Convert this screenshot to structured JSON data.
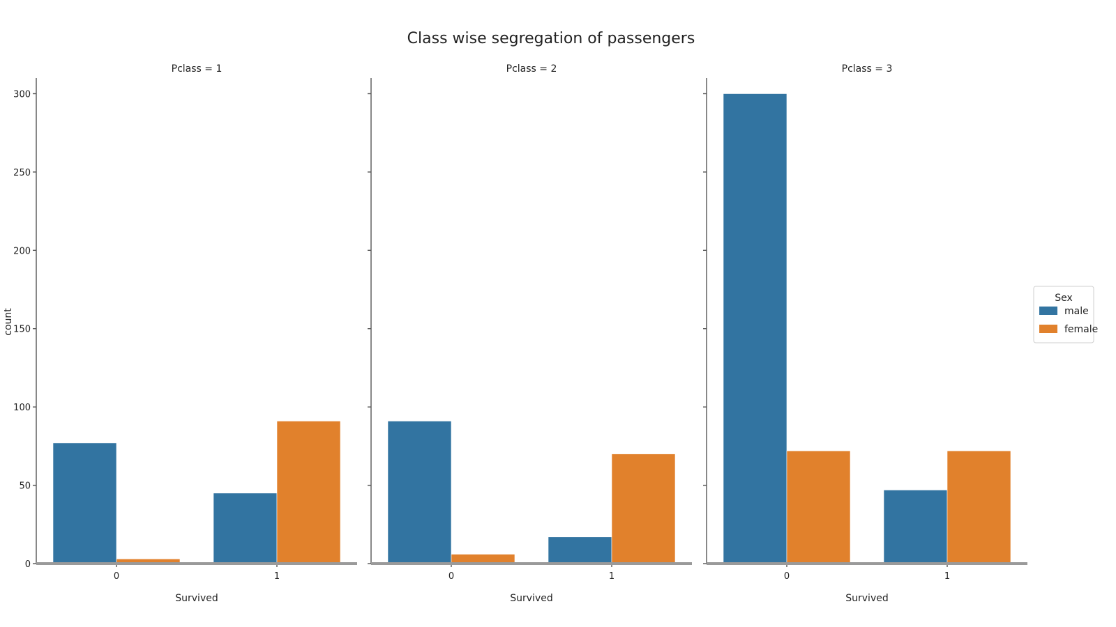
{
  "chart_data": {
    "type": "bar",
    "title": "Class wise segregation of passengers",
    "ylabel": "count",
    "xlabel": "Survived",
    "ylim": [
      0,
      310
    ],
    "yticks": [
      0,
      50,
      100,
      150,
      200,
      250,
      300
    ],
    "categories": [
      "0",
      "1"
    ],
    "legend": {
      "title": "Sex",
      "placement": "right",
      "entries": [
        "male",
        "female"
      ]
    },
    "colors": {
      "male": "#3274a1",
      "female": "#e1812c"
    },
    "panels": [
      {
        "title": "Pclass = 1",
        "series": [
          {
            "name": "male",
            "values": [
              77,
              45
            ]
          },
          {
            "name": "female",
            "values": [
              3,
              91
            ]
          }
        ]
      },
      {
        "title": "Pclass = 2",
        "series": [
          {
            "name": "male",
            "values": [
              91,
              17
            ]
          },
          {
            "name": "female",
            "values": [
              6,
              70
            ]
          }
        ]
      },
      {
        "title": "Pclass = 3",
        "series": [
          {
            "name": "male",
            "values": [
              300,
              47
            ]
          },
          {
            "name": "female",
            "values": [
              72,
              72
            ]
          }
        ]
      }
    ]
  }
}
